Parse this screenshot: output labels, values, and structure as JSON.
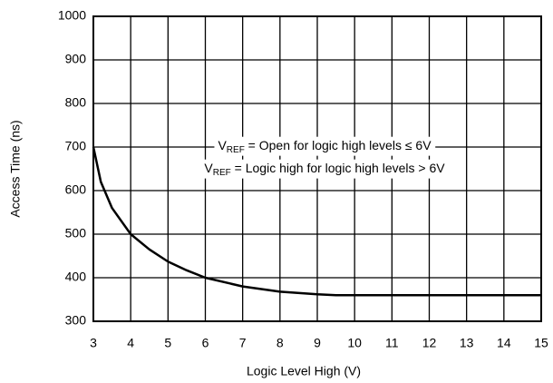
{
  "chart_data": {
    "type": "line",
    "xlabel": "Logic Level High (V)",
    "ylabel": "Access Time (ns)",
    "x": [
      3,
      3.2,
      3.5,
      4,
      4.5,
      5,
      5.5,
      6,
      7,
      8,
      9,
      9.5,
      10,
      11,
      12,
      13,
      14,
      15
    ],
    "series": [
      {
        "color": "#000000",
        "values": [
          700,
          620,
          560,
          500,
          465,
          437,
          417,
          400,
          380,
          368,
          362,
          360,
          360,
          360,
          360,
          360,
          360,
          360
        ]
      }
    ],
    "xlim": [
      3,
      15
    ],
    "xticks": [
      3,
      4,
      5,
      6,
      7,
      8,
      9,
      10,
      11,
      12,
      13,
      14,
      15
    ],
    "ylim": [
      300,
      1000
    ],
    "yticks": [
      300,
      400,
      500,
      600,
      700,
      800,
      900,
      1000
    ],
    "grid": true,
    "annotations": [
      {
        "text": "V",
        "sub": "REF",
        "rest": " = Open for logic high levels ≤ 6V"
      },
      {
        "text": "V",
        "sub": "REF",
        "rest": " = Logic high for logic high levels > 6V"
      }
    ]
  }
}
